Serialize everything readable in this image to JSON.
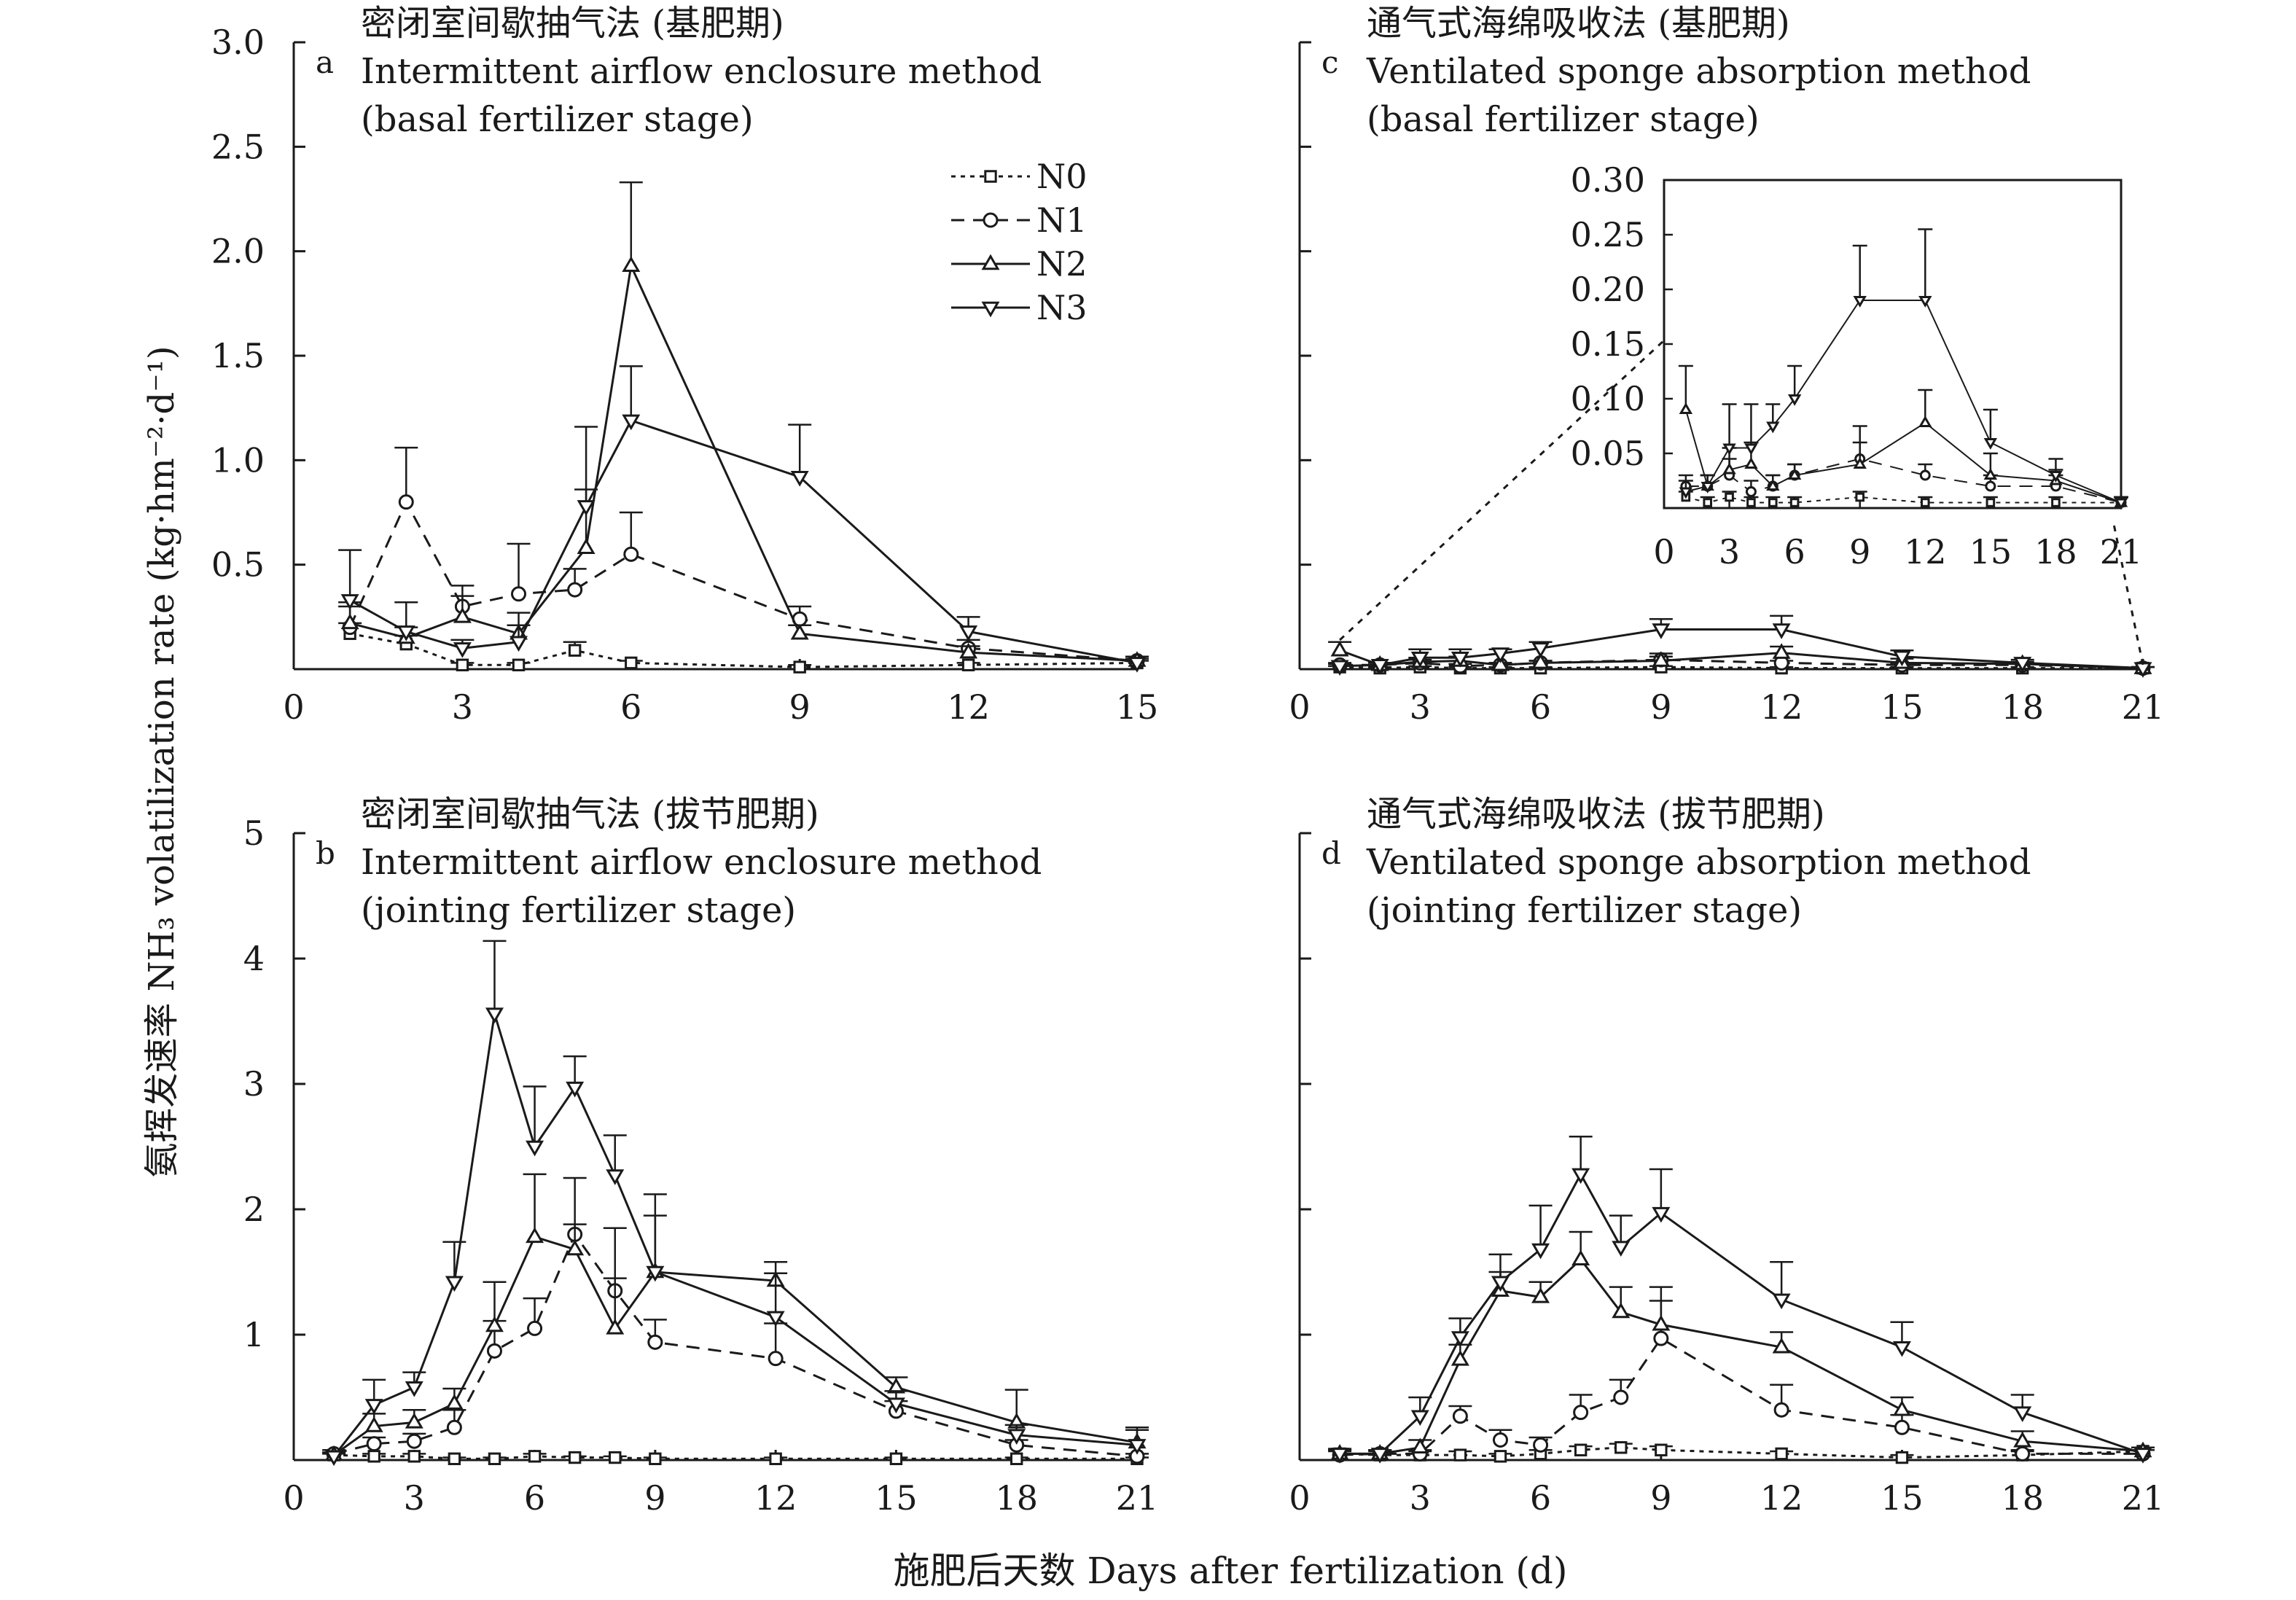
{
  "figure": {
    "ylabel": "氨挥发速率 NH₃ volatilization rate (kg·hm⁻²·d⁻¹)",
    "xlabel": "施肥后天数 Days after fertilization (d)"
  },
  "legend": [
    {
      "name": "N0",
      "marker": "square",
      "dash": "dotted"
    },
    {
      "name": "N1",
      "marker": "circle",
      "dash": "dashed"
    },
    {
      "name": "N2",
      "marker": "triangle-up",
      "dash": "solid"
    },
    {
      "name": "N3",
      "marker": "triangle-down",
      "dash": "solid"
    }
  ],
  "chart_data": [
    {
      "id": "a",
      "type": "line",
      "letter": "a",
      "title_cn": "密闭室间歇抽气法 (基肥期)",
      "title_en1": "Intermittent airflow enclosure method",
      "title_en2": "(basal fertilizer stage)",
      "xlim": [
        0,
        15
      ],
      "xticks": [
        0,
        3,
        6,
        9,
        12,
        15
      ],
      "ylim": [
        0,
        3
      ],
      "yticks": [
        0.5,
        1.0,
        1.5,
        2.0,
        2.5,
        3.0
      ],
      "ytick_labels": [
        "0.5",
        "1.0",
        "1.5",
        "2.0",
        "2.5",
        "3.0"
      ],
      "series": [
        {
          "name": "N0",
          "x": [
            1,
            2,
            3,
            4,
            5,
            6,
            9,
            12,
            15
          ],
          "y": [
            0.17,
            0.12,
            0.02,
            0.02,
            0.09,
            0.03,
            0.01,
            0.02,
            0.03
          ],
          "err": [
            0.05,
            0.04,
            0.01,
            0.01,
            0.04,
            0.01,
            0.01,
            0.01,
            0.01
          ]
        },
        {
          "name": "N1",
          "x": [
            1,
            2,
            3,
            4,
            5,
            6,
            9,
            12,
            15
          ],
          "y": [
            0.2,
            0.8,
            0.3,
            0.36,
            0.38,
            0.55,
            0.24,
            0.1,
            0.04
          ],
          "err": [
            0.1,
            0.26,
            0.1,
            0.24,
            0.1,
            0.2,
            0.06,
            0.04,
            0.02
          ]
        },
        {
          "name": "N2",
          "x": [
            1,
            2,
            3,
            4,
            5.2,
            6,
            9,
            12,
            15
          ],
          "y": [
            0.22,
            0.15,
            0.25,
            0.17,
            0.58,
            1.93,
            0.17,
            0.08,
            0.04
          ],
          "err": [
            0.1,
            0.05,
            0.1,
            0.1,
            0.28,
            0.4,
            0.04,
            0.03,
            0.02
          ]
        },
        {
          "name": "N3",
          "x": [
            1,
            2,
            3,
            4,
            5.2,
            6,
            9,
            12,
            15
          ],
          "y": [
            0.33,
            0.18,
            0.1,
            0.13,
            0.78,
            1.19,
            0.92,
            0.18,
            0.03
          ],
          "err": [
            0.24,
            0.14,
            0.04,
            0.08,
            0.38,
            0.26,
            0.25,
            0.07,
            0.02
          ]
        }
      ]
    },
    {
      "id": "b",
      "type": "line",
      "letter": "b",
      "title_cn": "密闭室间歇抽气法 (拔节肥期)",
      "title_en1": "Intermittent airflow enclosure method",
      "title_en2": "(jointing fertilizer stage)",
      "xlim": [
        0,
        21
      ],
      "xticks": [
        0,
        3,
        6,
        9,
        12,
        15,
        18,
        21
      ],
      "ylim": [
        0,
        5
      ],
      "yticks": [
        1,
        2,
        3,
        4,
        5
      ],
      "ytick_labels": [
        "1",
        "2",
        "3",
        "4",
        "5"
      ],
      "series": [
        {
          "name": "N0",
          "x": [
            1,
            2,
            3,
            4,
            5,
            6,
            7,
            8,
            9,
            12,
            15,
            18,
            21
          ],
          "y": [
            0.04,
            0.03,
            0.03,
            0.01,
            0.01,
            0.03,
            0.02,
            0.02,
            0.01,
            0.01,
            0.01,
            0.01,
            0.01
          ],
          "err": [
            0.02,
            0.02,
            0.02,
            0.01,
            0.01,
            0.02,
            0.01,
            0.01,
            0.01,
            0.01,
            0.01,
            0.01,
            0.01
          ]
        },
        {
          "name": "N1",
          "x": [
            1,
            2,
            3,
            4,
            5,
            6,
            7,
            8,
            9,
            12,
            15,
            18,
            21
          ],
          "y": [
            0.05,
            0.13,
            0.15,
            0.26,
            0.87,
            1.05,
            1.8,
            1.35,
            0.94,
            0.81,
            0.39,
            0.12,
            0.03
          ],
          "err": [
            0.03,
            0.05,
            0.06,
            0.14,
            0.24,
            0.24,
            0.45,
            0.5,
            0.18,
            0.28,
            0.08,
            0.04,
            0.02
          ]
        },
        {
          "name": "N2",
          "x": [
            1,
            2,
            3,
            4,
            5,
            6,
            7,
            8,
            9,
            12,
            15,
            18,
            21
          ],
          "y": [
            0.04,
            0.27,
            0.3,
            0.45,
            1.07,
            1.78,
            1.68,
            1.05,
            1.5,
            1.43,
            0.58,
            0.3,
            0.14
          ],
          "err": [
            0.02,
            0.1,
            0.1,
            0.12,
            0.35,
            0.5,
            0.2,
            0.4,
            0.45,
            0.15,
            0.08,
            0.26,
            0.1
          ]
        },
        {
          "name": "N3",
          "x": [
            1,
            2,
            3,
            4,
            5,
            6,
            7,
            8,
            9,
            12,
            15,
            18,
            21
          ],
          "y": [
            0.03,
            0.44,
            0.58,
            1.42,
            3.56,
            2.5,
            2.97,
            2.27,
            1.5,
            1.14,
            0.45,
            0.2,
            0.12
          ],
          "err": [
            0.02,
            0.2,
            0.12,
            0.32,
            0.58,
            0.48,
            0.25,
            0.32,
            0.62,
            0.35,
            0.1,
            0.08,
            0.14
          ]
        }
      ]
    },
    {
      "id": "c",
      "type": "line",
      "letter": "c",
      "title_cn": "通气式海绵吸收法 (基肥期)",
      "title_en1": "Ventilated sponge absorption method",
      "title_en2": "(basal fertilizer stage)",
      "xlim": [
        0,
        21
      ],
      "xticks": [
        0,
        3,
        6,
        9,
        12,
        15,
        18,
        21
      ],
      "ylim": [
        0,
        3
      ],
      "yticks": [
        0.5,
        1.0,
        1.5,
        2.0,
        2.5,
        3.0
      ],
      "ytick_labels": [],
      "series": [
        {
          "name": "N0",
          "x": [
            1,
            2,
            3,
            4,
            5,
            6,
            9,
            12,
            15,
            18,
            21
          ],
          "y": [
            0.01,
            0.005,
            0.01,
            0.005,
            0.005,
            0.005,
            0.01,
            0.005,
            0.005,
            0.005,
            0.005
          ],
          "err": [
            0.005,
            0.005,
            0.005,
            0.005,
            0.005,
            0.005,
            0.005,
            0.005,
            0.005,
            0.005,
            0.005
          ]
        },
        {
          "name": "N1",
          "x": [
            1,
            2,
            3,
            4,
            5,
            6,
            9,
            12,
            15,
            18,
            21
          ],
          "y": [
            0.02,
            0.02,
            0.03,
            0.015,
            0.02,
            0.03,
            0.045,
            0.03,
            0.02,
            0.02,
            0.005
          ],
          "err": [
            0.01,
            0.01,
            0.015,
            0.01,
            0.01,
            0.01,
            0.03,
            0.01,
            0.01,
            0.01,
            0.005
          ]
        },
        {
          "name": "N2",
          "x": [
            1,
            2,
            3,
            4,
            5,
            6,
            9,
            12,
            15,
            18,
            21
          ],
          "y": [
            0.09,
            0.02,
            0.035,
            0.04,
            0.02,
            0.03,
            0.04,
            0.078,
            0.03,
            0.025,
            0.005
          ],
          "err": [
            0.04,
            0.01,
            0.02,
            0.02,
            0.01,
            0.01,
            0.02,
            0.03,
            0.02,
            0.01,
            0.005
          ]
        },
        {
          "name": "N3",
          "x": [
            1,
            2,
            3,
            4,
            5,
            6,
            9,
            12,
            15,
            18,
            21
          ],
          "y": [
            0.015,
            0.02,
            0.055,
            0.055,
            0.075,
            0.1,
            0.19,
            0.19,
            0.06,
            0.03,
            0.005
          ],
          "err": [
            0.01,
            0.01,
            0.04,
            0.04,
            0.02,
            0.03,
            0.05,
            0.065,
            0.03,
            0.015,
            0.005
          ]
        }
      ],
      "inset": {
        "xlim": [
          0,
          21
        ],
        "xticks": [
          0,
          3,
          6,
          9,
          12,
          15,
          18,
          21
        ],
        "ylim": [
          0,
          0.3
        ],
        "yticks": [
          0.05,
          0.1,
          0.15,
          0.2,
          0.25,
          0.3
        ],
        "ytick_labels": [
          "0.05",
          "0.10",
          "0.15",
          "0.20",
          "0.25",
          "0.30"
        ]
      }
    },
    {
      "id": "d",
      "type": "line",
      "letter": "d",
      "title_cn": "通气式海绵吸收法 (拔节肥期)",
      "title_en1": "Ventilated sponge absorption method",
      "title_en2": "(jointing fertilizer stage)",
      "xlim": [
        0,
        21
      ],
      "xticks": [
        0,
        3,
        6,
        9,
        12,
        15,
        18,
        21
      ],
      "ylim": [
        0,
        5
      ],
      "yticks": [
        1,
        2,
        3,
        4,
        5
      ],
      "ytick_labels": [],
      "series": [
        {
          "name": "N0",
          "x": [
            1,
            2,
            3,
            4,
            5,
            6,
            7,
            8,
            9,
            12,
            15,
            18,
            21
          ],
          "y": [
            0.05,
            0.04,
            0.04,
            0.04,
            0.03,
            0.05,
            0.08,
            0.1,
            0.08,
            0.05,
            0.02,
            0.04,
            0.07
          ],
          "err": [
            0.04,
            0.03,
            0.03,
            0.03,
            0.02,
            0.03,
            0.03,
            0.03,
            0.03,
            0.02,
            0.02,
            0.03,
            0.03
          ]
        },
        {
          "name": "N1",
          "x": [
            1,
            2,
            3,
            4,
            5,
            6,
            7,
            8,
            9,
            12,
            15,
            18,
            21
          ],
          "y": [
            0.04,
            0.05,
            0.05,
            0.35,
            0.16,
            0.12,
            0.38,
            0.5,
            0.97,
            0.4,
            0.26,
            0.05,
            0.05
          ],
          "err": [
            0.03,
            0.03,
            0.03,
            0.08,
            0.08,
            0.06,
            0.14,
            0.14,
            0.3,
            0.2,
            0.1,
            0.03,
            0.03
          ]
        },
        {
          "name": "N2",
          "x": [
            1,
            2,
            3,
            4,
            5,
            6,
            7,
            8,
            9,
            12,
            15,
            18,
            21
          ],
          "y": [
            0.05,
            0.05,
            0.1,
            0.8,
            1.35,
            1.3,
            1.6,
            1.18,
            1.08,
            0.9,
            0.4,
            0.15,
            0.07
          ],
          "err": [
            0.03,
            0.03,
            0.06,
            0.12,
            0.15,
            0.12,
            0.22,
            0.2,
            0.3,
            0.12,
            0.1,
            0.08,
            0.03
          ]
        },
        {
          "name": "N3",
          "x": [
            1,
            2,
            3,
            4,
            5,
            6,
            7,
            8,
            9,
            12,
            15,
            18,
            21
          ],
          "y": [
            0.05,
            0.05,
            0.35,
            0.98,
            1.42,
            1.68,
            2.28,
            1.7,
            1.97,
            1.28,
            0.9,
            0.38,
            0.05
          ],
          "err": [
            0.03,
            0.03,
            0.15,
            0.15,
            0.22,
            0.35,
            0.3,
            0.25,
            0.35,
            0.3,
            0.2,
            0.14,
            0.03
          ]
        }
      ]
    }
  ]
}
